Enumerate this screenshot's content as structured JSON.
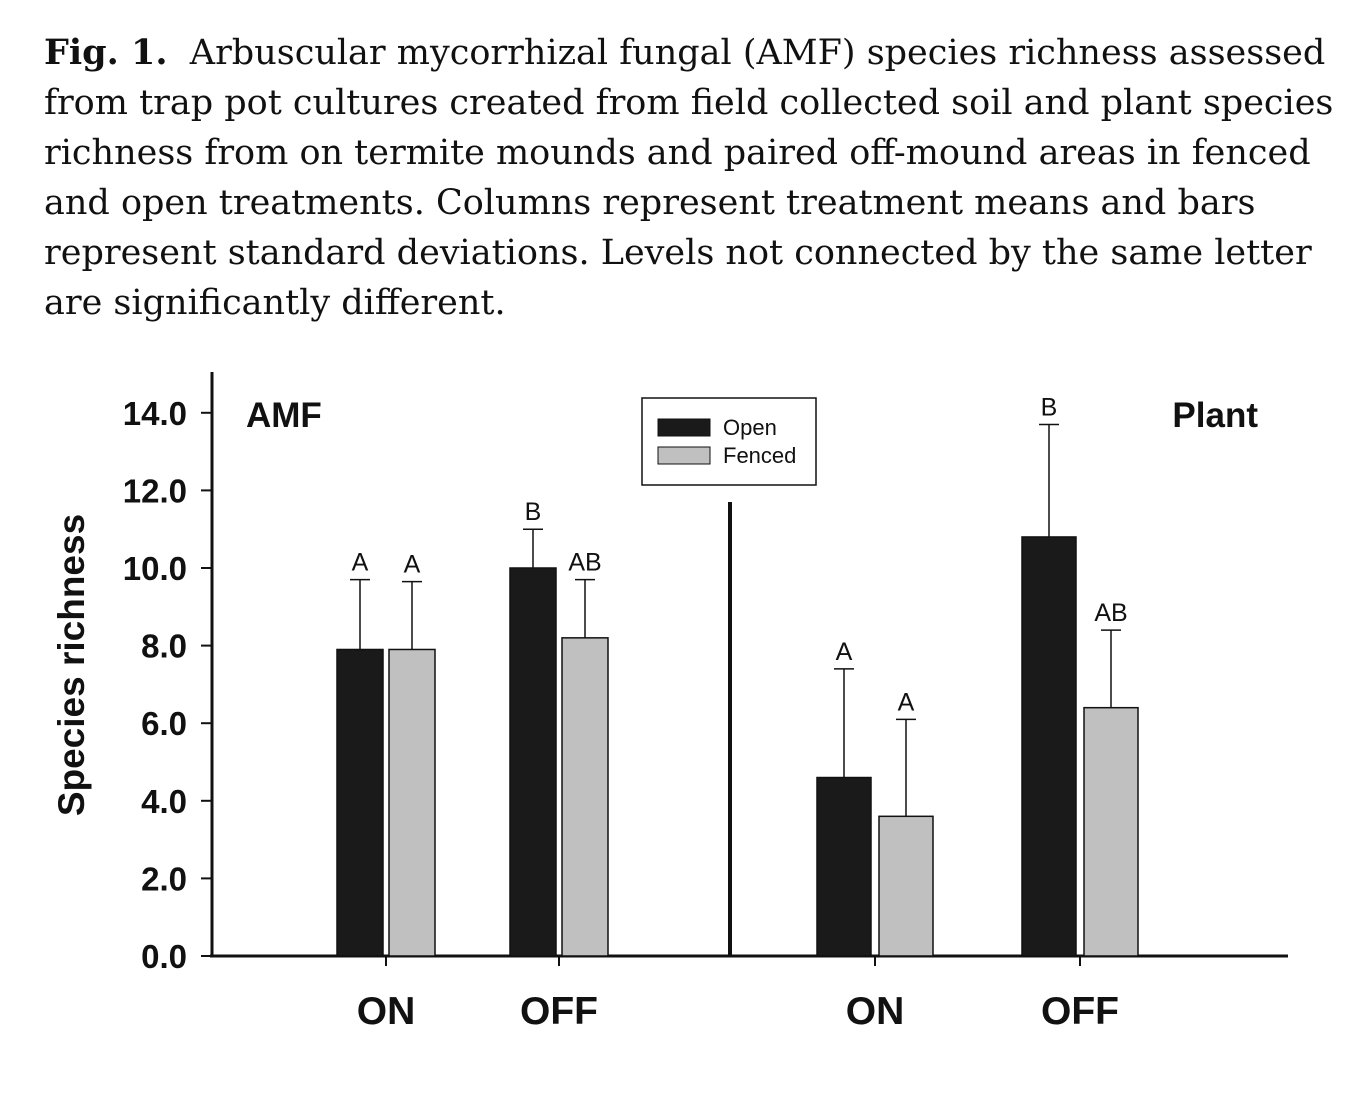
{
  "caption": {
    "label": "Fig. 1.",
    "text": "Arbuscular mycorrhizal fungal (AMF) species richness assessed from trap pot cultures created from field collected soil and plant species richness from on termite mounds and paired off-mound areas in fenced and open treatments. Columns represent treatment means and bars represent standard deviations. Levels not connected by the same letter are significantly different."
  },
  "chart_data": {
    "type": "bar",
    "ylabel": "Species richness",
    "ylim": [
      0,
      14
    ],
    "yticks": [
      "0.0",
      "2.0",
      "4.0",
      "6.0",
      "8.0",
      "10.0",
      "12.0",
      "14.0"
    ],
    "legend": {
      "placement": "top-center",
      "entries": [
        {
          "name": "Open",
          "color": "#1a1a1a"
        },
        {
          "name": "Fenced",
          "color": "#c0c0c0"
        }
      ]
    },
    "panels": [
      {
        "title": "AMF",
        "categories": [
          "ON",
          "OFF"
        ],
        "series": [
          {
            "name": "Open",
            "values": [
              7.9,
              10.0
            ],
            "sd": [
              1.8,
              1.0
            ],
            "letters": [
              "A",
              "B"
            ]
          },
          {
            "name": "Fenced",
            "values": [
              7.9,
              8.2
            ],
            "sd": [
              1.75,
              1.5
            ],
            "letters": [
              "A",
              "AB"
            ]
          }
        ]
      },
      {
        "title": "Plant",
        "categories": [
          "ON",
          "OFF"
        ],
        "series": [
          {
            "name": "Open",
            "values": [
              4.6,
              10.8
            ],
            "sd": [
              2.8,
              2.9
            ],
            "letters": [
              "A",
              "B"
            ]
          },
          {
            "name": "Fenced",
            "values": [
              3.6,
              6.4
            ],
            "sd": [
              2.5,
              2.0
            ],
            "letters": [
              "A",
              "AB"
            ]
          }
        ]
      }
    ]
  }
}
